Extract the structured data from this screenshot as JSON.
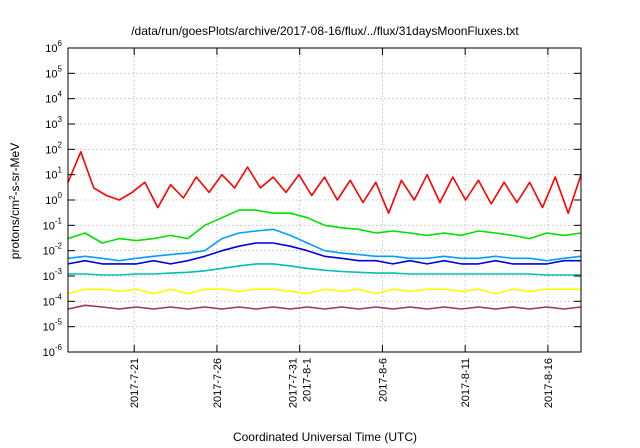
{
  "chart_data": {
    "type": "line",
    "title": "/data/run/goesPlots/archive/2017-08-16/flux/../flux/31daysMoonFluxes.txt",
    "xlabel": "Coordinated Universal Time (UTC)",
    "ylabel": {
      "base": "protons/cm",
      "sup": "2",
      "rest": "-s-sr-MeV"
    },
    "yscale": "log",
    "ylim": [
      1e-06,
      1000000.0
    ],
    "xlim": [
      "2017-07-17 12:00",
      "2017-08-17 12:00"
    ],
    "grid": true,
    "legend": "none",
    "y_ticks": [
      {
        "exp": -6,
        "base": "10",
        "sup": "-6"
      },
      {
        "exp": -5,
        "base": "10",
        "sup": "-5"
      },
      {
        "exp": -4,
        "base": "10",
        "sup": "-4"
      },
      {
        "exp": -3,
        "base": "10",
        "sup": "-3"
      },
      {
        "exp": -2,
        "base": "10",
        "sup": "-2"
      },
      {
        "exp": -1,
        "base": "10",
        "sup": "-1"
      },
      {
        "exp": 0,
        "base": "10",
        "sup": "0"
      },
      {
        "exp": 1,
        "base": "10",
        "sup": "1"
      },
      {
        "exp": 2,
        "base": "10",
        "sup": "2"
      },
      {
        "exp": 3,
        "base": "10",
        "sup": "3"
      },
      {
        "exp": 4,
        "base": "10",
        "sup": "4"
      },
      {
        "exp": 5,
        "base": "10",
        "sup": "5"
      },
      {
        "exp": 6,
        "base": "10",
        "sup": "6"
      }
    ],
    "x_ticks": [
      {
        "day": 4,
        "lines": [
          "2017-7-21"
        ]
      },
      {
        "day": 9,
        "lines": [
          "2017-7-26"
        ]
      },
      {
        "day": 14,
        "lines": [
          "2017-7-31",
          "2017-8-1"
        ]
      },
      {
        "day": 19,
        "lines": [
          "2017-8-6"
        ]
      },
      {
        "day": 24,
        "lines": [
          "2017-8-11"
        ]
      },
      {
        "day": 29,
        "lines": [
          "2017-8-16"
        ]
      }
    ],
    "series": [
      {
        "color": "#ff0000",
        "values": [
          5,
          80,
          3,
          1.5,
          1,
          2,
          5,
          0.5,
          4,
          1.2,
          8,
          2,
          10,
          3,
          20,
          3,
          8,
          2,
          10,
          1.5,
          8,
          1,
          6,
          0.8,
          5,
          0.3,
          6,
          1,
          10,
          0.8,
          8,
          1,
          6,
          0.7,
          5,
          0.8,
          5,
          0.5,
          8,
          0.3,
          10
        ]
      },
      {
        "color": "#00e000",
        "values": [
          0.03,
          0.05,
          0.02,
          0.03,
          0.025,
          0.03,
          0.04,
          0.03,
          0.1,
          0.2,
          0.4,
          0.4,
          0.3,
          0.3,
          0.2,
          0.1,
          0.08,
          0.07,
          0.05,
          0.06,
          0.05,
          0.04,
          0.05,
          0.04,
          0.06,
          0.05,
          0.04,
          0.03,
          0.05,
          0.04,
          0.05
        ]
      },
      {
        "color": "#00a0ff",
        "values": [
          0.005,
          0.006,
          0.005,
          0.004,
          0.005,
          0.006,
          0.007,
          0.008,
          0.01,
          0.03,
          0.05,
          0.06,
          0.07,
          0.04,
          0.02,
          0.01,
          0.008,
          0.007,
          0.006,
          0.006,
          0.005,
          0.005,
          0.006,
          0.005,
          0.005,
          0.006,
          0.005,
          0.005,
          0.004,
          0.005,
          0.006
        ]
      },
      {
        "color": "#0000e0",
        "values": [
          0.003,
          0.004,
          0.003,
          0.003,
          0.003,
          0.004,
          0.003,
          0.004,
          0.006,
          0.01,
          0.015,
          0.02,
          0.02,
          0.015,
          0.01,
          0.006,
          0.005,
          0.004,
          0.004,
          0.003,
          0.004,
          0.003,
          0.004,
          0.003,
          0.003,
          0.004,
          0.003,
          0.003,
          0.003,
          0.004,
          0.004
        ]
      },
      {
        "color": "#00c0b0",
        "values": [
          0.0012,
          0.0012,
          0.0011,
          0.0011,
          0.0012,
          0.0012,
          0.0013,
          0.0014,
          0.0016,
          0.002,
          0.0025,
          0.003,
          0.003,
          0.0025,
          0.002,
          0.0017,
          0.0015,
          0.0014,
          0.0013,
          0.0013,
          0.0012,
          0.0012,
          0.0012,
          0.0012,
          0.0012,
          0.0012,
          0.0012,
          0.0012,
          0.0011,
          0.0011,
          0.0011
        ]
      },
      {
        "color": "#ffff00",
        "values": [
          0.0002,
          0.0003,
          0.0003,
          0.00025,
          0.0003,
          0.0002,
          0.0003,
          0.0002,
          0.0003,
          0.0003,
          0.00025,
          0.0003,
          0.0003,
          0.00025,
          0.0002,
          0.0003,
          0.00025,
          0.0003,
          0.0002,
          0.0003,
          0.00025,
          0.0003,
          0.0003,
          0.00025,
          0.0003,
          0.0002,
          0.0003,
          0.00025,
          0.0003,
          0.0003,
          0.0003
        ]
      },
      {
        "color": "#a0306a",
        "values": [
          5e-05,
          7e-05,
          6e-05,
          5e-05,
          6e-05,
          5e-05,
          6e-05,
          5e-05,
          6e-05,
          5e-05,
          6e-05,
          5e-05,
          6e-05,
          5e-05,
          6e-05,
          5e-05,
          6e-05,
          5e-05,
          6e-05,
          5e-05,
          6e-05,
          5e-05,
          6e-05,
          5e-05,
          6e-05,
          5e-05,
          6e-05,
          5e-05,
          6e-05,
          5e-05,
          6e-05
        ]
      }
    ]
  }
}
